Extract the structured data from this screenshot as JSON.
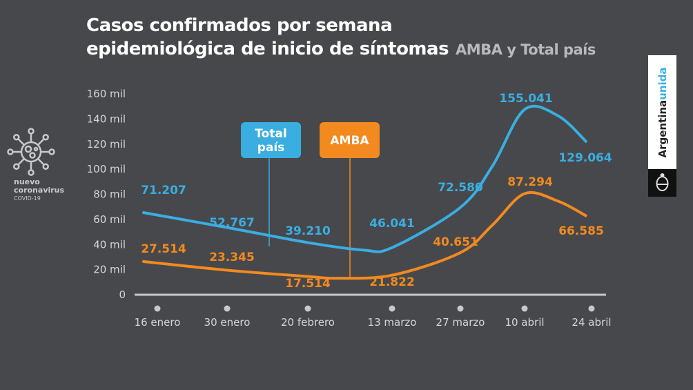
{
  "header": {
    "title_line1": "Casos confirmados por semana",
    "title_line2": "epidemiológica de inicio de síntomas",
    "subtitle": "AMBA y Total país"
  },
  "side_badge": {
    "line1": "nuevo",
    "line2": "coronavirus",
    "line3": "COVID-19",
    "icon": "virus-icon"
  },
  "brand": {
    "text_a": "Argentina",
    "text_b": "unida",
    "icon": "argentina-coat-of-arms"
  },
  "colors": {
    "background": "#47484c",
    "total": "#3aaee0",
    "amba": "#f28a1f",
    "axis": "#c8c8c8"
  },
  "chart_data": {
    "type": "line",
    "title": "Casos confirmados por semana epidemiológica de inicio de síntomas",
    "subtitle": "AMBA y Total país",
    "yticks": [
      "0",
      "20 mil",
      "40 mil",
      "60 mil",
      "80 mil",
      "100 mil",
      "120 mil",
      "140 mil",
      "160 mil"
    ],
    "ylim": [
      0,
      160000
    ],
    "xticks": [
      {
        "date": "2021-01-16",
        "label": "16 enero"
      },
      {
        "date": "2021-01-30",
        "label": "30 enero"
      },
      {
        "date": "2021-02-20",
        "label": "20 febrero"
      },
      {
        "date": "2021-03-13",
        "label": "13 marzo"
      },
      {
        "date": "2021-03-27",
        "label": "27 marzo"
      },
      {
        "date": "2021-04-10",
        "label": "10 abril"
      },
      {
        "date": "2021-04-24",
        "label": "24 abril"
      }
    ],
    "grid": false,
    "series": [
      {
        "name": "Total país",
        "color": "#3aaee0",
        "points": [
          [
            "2021-01-13",
            65000
          ],
          [
            "2021-01-30",
            53000
          ],
          [
            "2021-02-20",
            41000
          ],
          [
            "2021-03-06",
            35000
          ],
          [
            "2021-03-13",
            37000
          ],
          [
            "2021-03-27",
            69000
          ],
          [
            "2021-04-03",
            102000
          ],
          [
            "2021-04-10",
            147000
          ],
          [
            "2021-04-17",
            142000
          ],
          [
            "2021-04-23",
            121000
          ]
        ],
        "labels": [
          "71.207",
          "52.767",
          "39.210",
          "46.041",
          "72.580",
          "155.041",
          "129.064"
        ]
      },
      {
        "name": "AMBA",
        "color": "#f28a1f",
        "points": [
          [
            "2021-01-13",
            26000
          ],
          [
            "2021-01-30",
            19000
          ],
          [
            "2021-02-20",
            14000
          ],
          [
            "2021-02-27",
            12600
          ],
          [
            "2021-03-13",
            15000
          ],
          [
            "2021-03-27",
            33000
          ],
          [
            "2021-04-03",
            55000
          ],
          [
            "2021-04-10",
            80000
          ],
          [
            "2021-04-17",
            74000
          ],
          [
            "2021-04-23",
            62000
          ]
        ],
        "labels": [
          "27.514",
          "23.345",
          "17.514",
          "21.822",
          "40.651",
          "87.294",
          "66.585"
        ]
      }
    ],
    "legend": [
      {
        "line1": "Total",
        "line2": "país",
        "color": "#3aaee0"
      },
      {
        "line1": "AMBA",
        "line2": "",
        "color": "#f28a1f"
      }
    ]
  }
}
